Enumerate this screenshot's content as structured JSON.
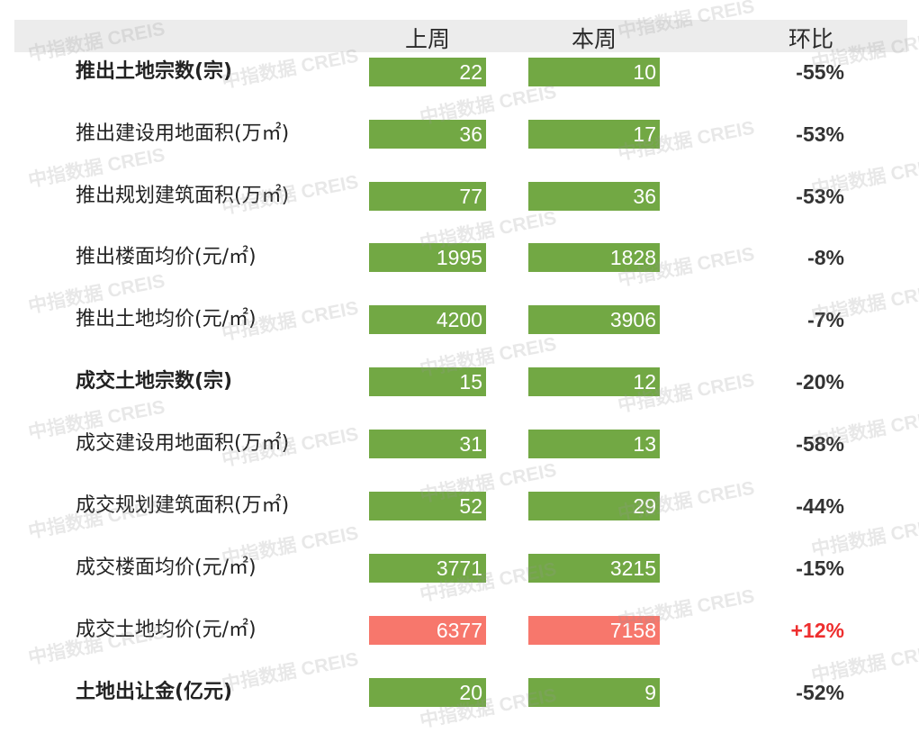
{
  "header": {
    "last_week": "上周",
    "this_week": "本周",
    "change": "环比"
  },
  "watermark_text": "中指数据 CREIS",
  "colors": {
    "normal_bar": "#72a844",
    "highlight_bar": "#f7776c",
    "change_text": "#333333",
    "change_up": "#ee2e2e"
  },
  "chart_data": {
    "type": "table",
    "columns": [
      "上周",
      "本周",
      "环比"
    ],
    "rows": [
      {
        "label": "推出土地宗数(宗)",
        "bold": true,
        "last_week": 22,
        "this_week": 10,
        "change": "-55%",
        "highlight": false
      },
      {
        "label": "推出建设用地面积(万㎡)",
        "bold": false,
        "last_week": 36,
        "this_week": 17,
        "change": "-53%",
        "highlight": false
      },
      {
        "label": "推出规划建筑面积(万㎡)",
        "bold": false,
        "last_week": 77,
        "this_week": 36,
        "change": "-53%",
        "highlight": false
      },
      {
        "label": "推出楼面均价(元/㎡)",
        "bold": false,
        "last_week": 1995,
        "this_week": 1828,
        "change": "-8%",
        "highlight": false
      },
      {
        "label": "推出土地均价(元/㎡)",
        "bold": false,
        "last_week": 4200,
        "this_week": 3906,
        "change": "-7%",
        "highlight": false
      },
      {
        "label": "成交土地宗数(宗)",
        "bold": true,
        "last_week": 15,
        "this_week": 12,
        "change": "-20%",
        "highlight": false
      },
      {
        "label": "成交建设用地面积(万㎡)",
        "bold": false,
        "last_week": 31,
        "this_week": 13,
        "change": "-58%",
        "highlight": false
      },
      {
        "label": "成交规划建筑面积(万㎡)",
        "bold": false,
        "last_week": 52,
        "this_week": 29,
        "change": "-44%",
        "highlight": false
      },
      {
        "label": "成交楼面均价(元/㎡)",
        "bold": false,
        "last_week": 3771,
        "this_week": 3215,
        "change": "-15%",
        "highlight": false
      },
      {
        "label": "成交土地均价(元/㎡)",
        "bold": false,
        "last_week": 6377,
        "this_week": 7158,
        "change": "+12%",
        "highlight": true
      },
      {
        "label": "土地出让金(亿元)",
        "bold": true,
        "last_week": 20,
        "this_week": 9,
        "change": "-52%",
        "highlight": false
      }
    ]
  }
}
